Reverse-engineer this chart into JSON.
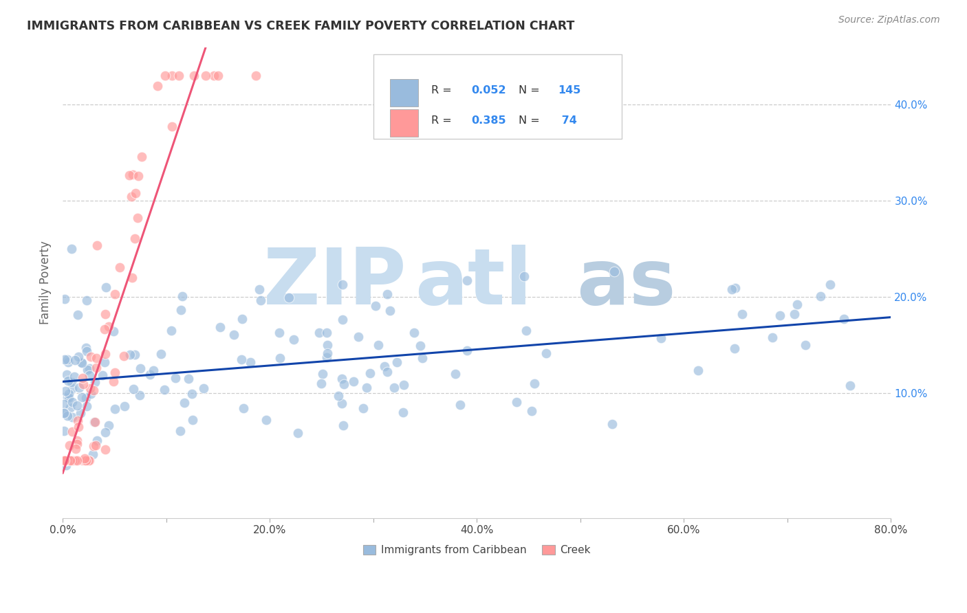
{
  "title": "IMMIGRANTS FROM CARIBBEAN VS CREEK FAMILY POVERTY CORRELATION CHART",
  "source": "Source: ZipAtlas.com",
  "ylabel": "Family Poverty",
  "xlim": [
    0.0,
    0.8
  ],
  "ylim": [
    0.0,
    0.44
  ],
  "xtick_positions": [
    0.0,
    0.1,
    0.2,
    0.3,
    0.4,
    0.5,
    0.6,
    0.7,
    0.8
  ],
  "xticklabels": [
    "0.0%",
    "",
    "20.0%",
    "",
    "40.0%",
    "",
    "60.0%",
    "",
    "80.0%"
  ],
  "ytick_positions": [
    0.1,
    0.2,
    0.3,
    0.4
  ],
  "ytick_labels_right": [
    "10.0%",
    "20.0%",
    "30.0%",
    "40.0%"
  ],
  "color_blue": "#99BBDD",
  "color_pink": "#FF9999",
  "line_blue": "#1144AA",
  "line_pink": "#EE5577",
  "background_color": "#FFFFFF",
  "grid_color": "#CCCCCC",
  "title_color": "#333333",
  "axis_label_color": "#666666",
  "tick_color_right": "#3388EE",
  "R_blue": 0.052,
  "R_pink": 0.385,
  "n_blue": 145,
  "n_pink": 74,
  "seed_blue": 42,
  "seed_pink": 99
}
